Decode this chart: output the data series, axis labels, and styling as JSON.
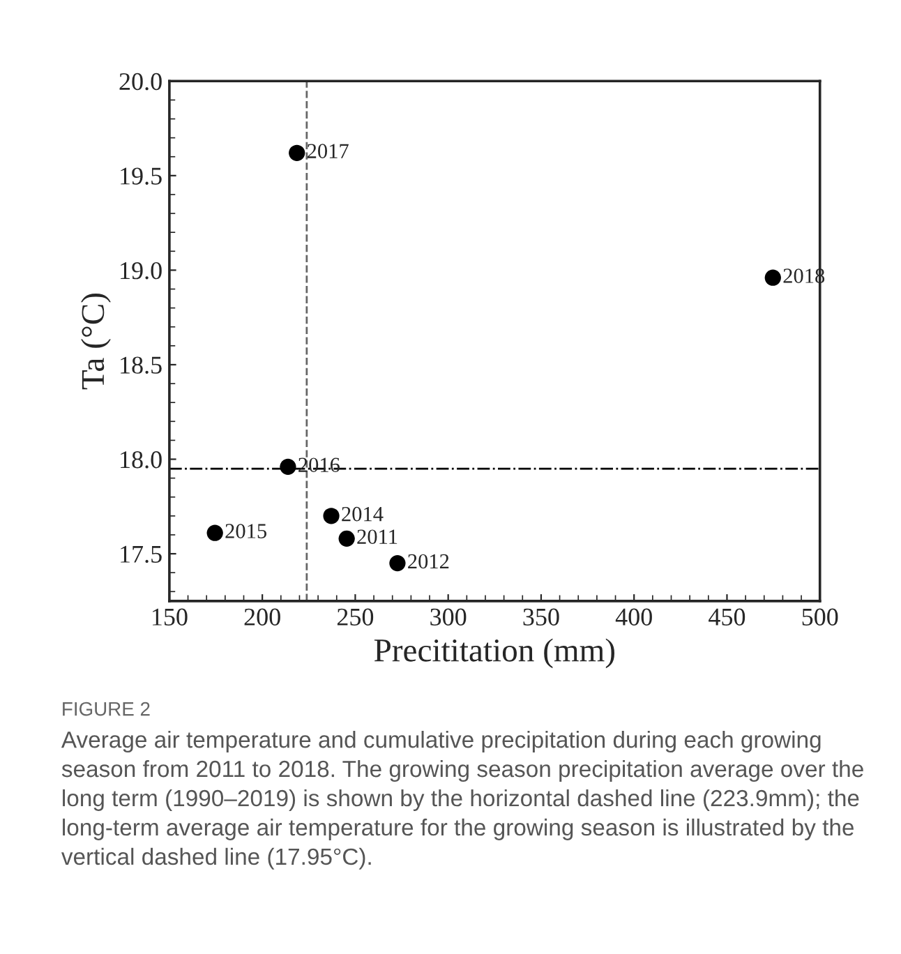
{
  "chart_data": {
    "type": "scatter",
    "xlabel": "Precititation (mm)",
    "ylabel": "Ta (°C)",
    "x": [
      245.4,
      272.7,
      237.1,
      174.5,
      213.8,
      218.6,
      474.7
    ],
    "series": [
      {
        "color": "#000000",
        "values": [
          17.58,
          17.45,
          17.7,
          17.61,
          17.96,
          19.62,
          18.96
        ]
      }
    ],
    "marker": "circle",
    "xlim": [
      150,
      500
    ],
    "xticks": [
      150,
      200,
      250,
      300,
      350,
      400,
      450,
      500
    ],
    "ylim": [
      17.25,
      20.0
    ],
    "yticks": [
      {
        "value": 17.5,
        "label": "17.5"
      },
      {
        "value": 18.0,
        "label": "18.0"
      },
      {
        "value": 18.5,
        "label": "18.5"
      },
      {
        "value": 19.0,
        "label": "19.0"
      },
      {
        "value": 19.5,
        "label": "19.5"
      },
      {
        "value": 20.0,
        "label": "20.0"
      }
    ],
    "grid": false,
    "legend": false,
    "ref_lines": [
      {
        "axis": "x",
        "value": 223.9,
        "color": "#666666",
        "line_style": "dashed"
      },
      {
        "axis": "y",
        "value": 17.95,
        "color": "#000000",
        "line_style": "dashdot"
      }
    ],
    "annotations": [
      {
        "text": "2011",
        "x": 245.4,
        "y": 17.58
      },
      {
        "text": "2012",
        "x": 272.7,
        "y": 17.45
      },
      {
        "text": "2014",
        "x": 237.1,
        "y": 17.7
      },
      {
        "text": "2015",
        "x": 174.5,
        "y": 17.61
      },
      {
        "text": "2016",
        "x": 213.8,
        "y": 17.96
      },
      {
        "text": "2017",
        "x": 218.6,
        "y": 19.62
      },
      {
        "text": "2018",
        "x": 474.7,
        "y": 18.96
      },
      "FIGURE 2",
      "Average air temperature and cumulative precipitation during each growing season from 2011 to 2018. The growing season precipitation average over the long term (1990–2019) is shown by the horizontal dashed line (223.9mm); the long-term average air temperature for the growing season is illustrated by the vertical dashed line (17.95°C)."
    ]
  }
}
